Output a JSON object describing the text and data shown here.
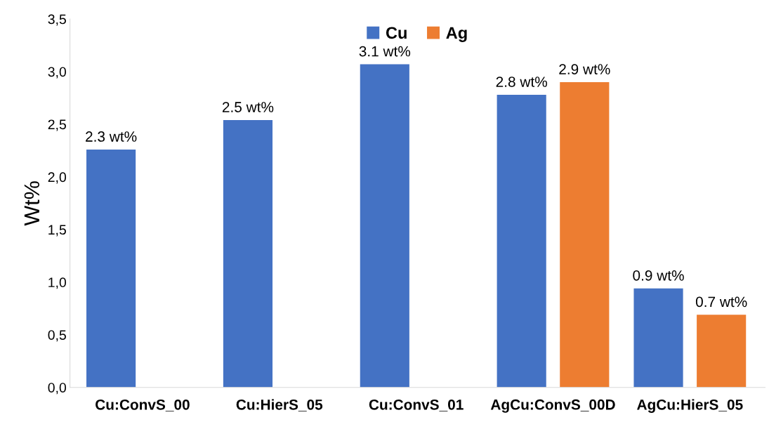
{
  "chart_data": {
    "type": "bar",
    "ylabel": "Wt%",
    "categories": [
      "Cu:ConvS_00",
      "Cu:HierS_05",
      "Cu:ConvS_01",
      "AgCu:ConvS_00D",
      "AgCu:HierS_05"
    ],
    "series": [
      {
        "name": "Cu",
        "color": "#4472c4",
        "values": [
          2.26,
          2.54,
          3.07,
          2.78,
          0.94
        ],
        "value_labels": [
          "2.3 wt%",
          "2.5 wt%",
          "3.1 wt%",
          "2.8 wt%",
          "0.9 wt%"
        ]
      },
      {
        "name": "Ag",
        "color": "#ed7d31",
        "values": [
          null,
          null,
          null,
          2.9,
          0.69
        ],
        "value_labels": [
          null,
          null,
          null,
          "2.9 wt%",
          "0.7 wt%"
        ]
      }
    ],
    "ylim": [
      0,
      3.5
    ],
    "yticks": [
      {
        "value": 0,
        "label": "0,0"
      },
      {
        "value": 0.5,
        "label": "0,5"
      },
      {
        "value": 1,
        "label": "1,0"
      },
      {
        "value": 1.5,
        "label": "1,5"
      },
      {
        "value": 2,
        "label": "2,0"
      },
      {
        "value": 2.5,
        "label": "2,5"
      },
      {
        "value": 3,
        "label": "3,0"
      },
      {
        "value": 3.5,
        "label": "3,5"
      }
    ],
    "grid": false,
    "legend": "top"
  }
}
